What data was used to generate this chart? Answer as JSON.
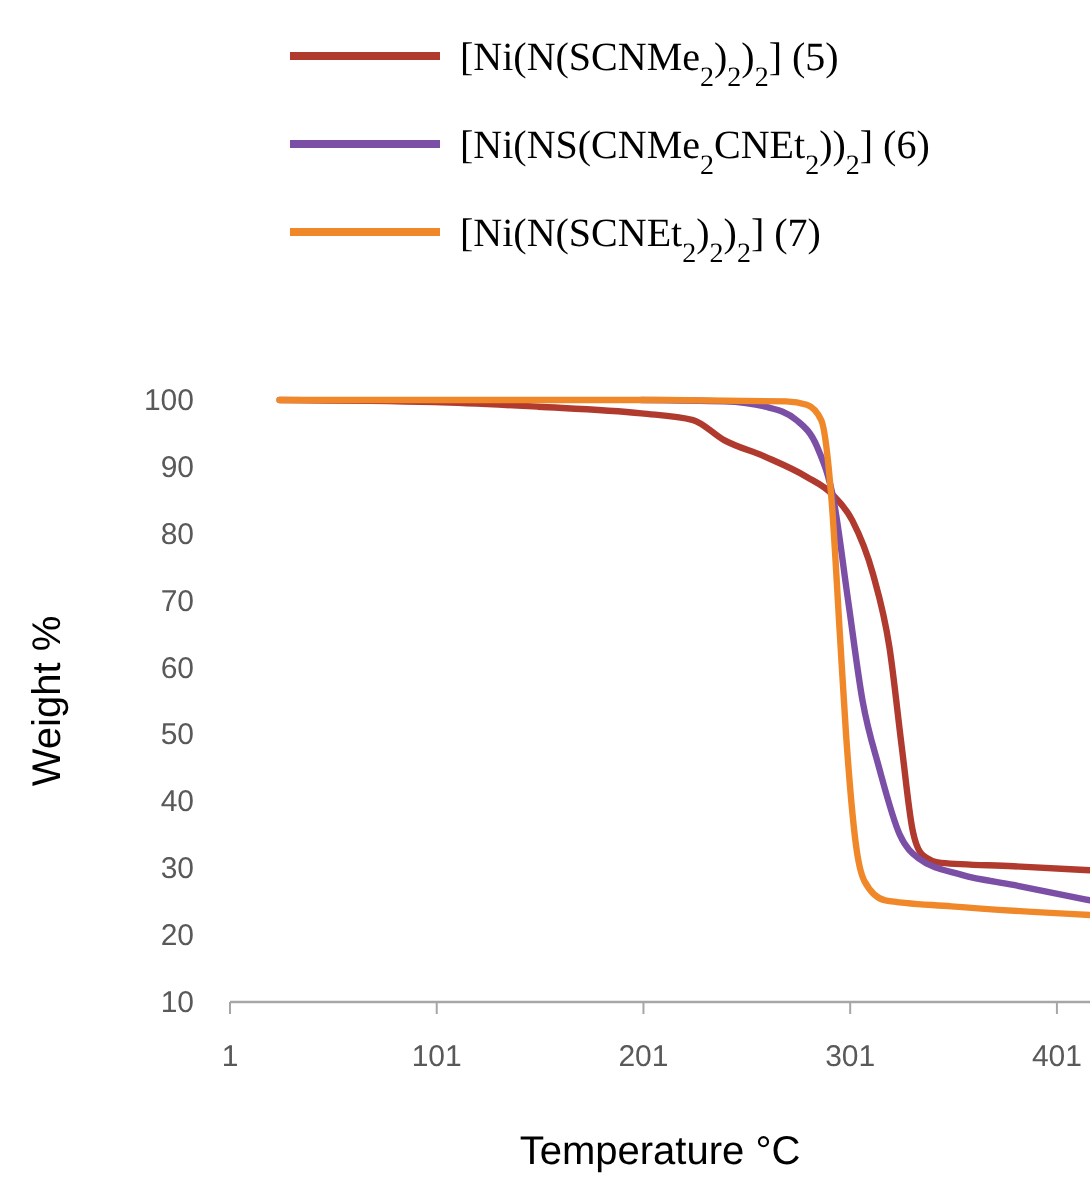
{
  "chart_data": {
    "type": "line",
    "xlabel": "Temperature °C",
    "ylabel": "Weight %",
    "xlim": [
      1,
      417
    ],
    "xticks": [
      1,
      101,
      201,
      301,
      401
    ],
    "ylim": [
      10,
      100
    ],
    "yticks": [
      10,
      20,
      30,
      40,
      50,
      60,
      70,
      80,
      90,
      100
    ],
    "legend": "top",
    "grid": false,
    "marker": "none",
    "line_style": "solid",
    "series": [
      {
        "name": "[Ni(N(SCNMe$_{2}$)$_{2}$)$_{2}$] (5)",
        "color": "#b03a2e",
        "x": [
          25,
          100,
          150,
          200,
          225,
          240,
          260,
          280,
          292,
          302,
          312,
          320,
          326,
          331,
          336,
          345,
          380,
          417
        ],
        "values": [
          100,
          99.7,
          99,
          98,
          97,
          94,
          91.5,
          88.5,
          86,
          82,
          74,
          63,
          48,
          36,
          32,
          30.8,
          30.3,
          29.7
        ]
      },
      {
        "name": "[Ni(NS(CNMe$_{2}$CNEt$_{2}$))$_{2}$] (6)",
        "color": "#7b4fa6",
        "x": [
          200,
          240,
          260,
          275,
          285,
          293,
          300,
          307,
          315,
          325,
          334,
          355,
          380,
          417
        ],
        "values": [
          100,
          99.8,
          99,
          97,
          93,
          85,
          70,
          55,
          45,
          35,
          31.5,
          29,
          27.5,
          25.2
        ]
      },
      {
        "name": "[Ni(N(SCNEt$_{2}$)$_{2}$)$_{2}$] (7)",
        "color": "#f0882a",
        "x": [
          25,
          100,
          200,
          270,
          280,
          287,
          292,
          296,
          299,
          304,
          308,
          318,
          350,
          417
        ],
        "values": [
          100,
          100,
          100,
          99.8,
          99.3,
          97,
          85,
          65,
          50,
          33,
          28,
          25.2,
          24.3,
          23
        ]
      }
    ]
  }
}
